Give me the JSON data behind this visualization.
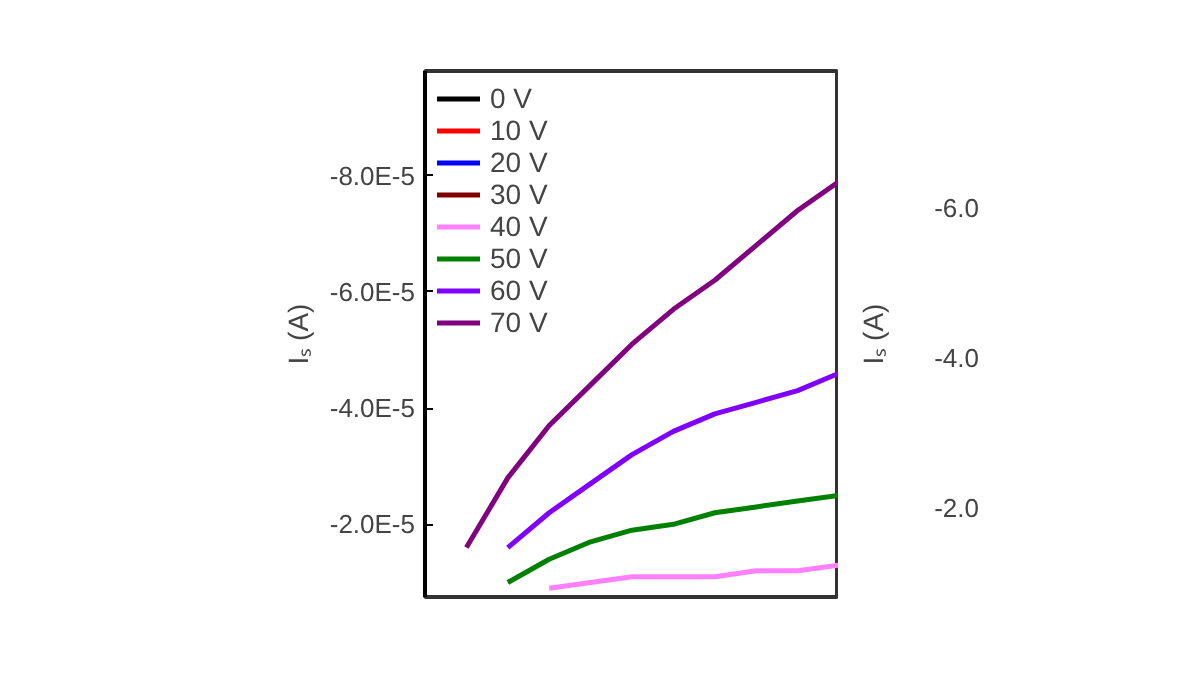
{
  "chart_data": [
    {
      "type": "line",
      "ylabel": "Iₛ (A)",
      "categories": [
        null,
        null,
        null,
        null,
        null,
        null,
        null,
        null,
        null,
        null,
        null
      ],
      "ylim": [
        -7.5e-06,
        -9.8e-05
      ],
      "yticks": [
        {
          "value": -2e-05,
          "label": "-2.0E-5"
        },
        {
          "value": -4e-05,
          "label": "-4.0E-5"
        },
        {
          "value": -6e-05,
          "label": "-6.0E-5"
        },
        {
          "value": -8e-05,
          "label": "-8.0E-5"
        }
      ],
      "tick_labels": "y",
      "legend": "top left",
      "series": [
        {
          "name": "0 V",
          "color": "#000000",
          "values": [
            null,
            null,
            null,
            null,
            null,
            null,
            null,
            null,
            null,
            null,
            null
          ]
        },
        {
          "name": "10 V",
          "color": "#ff0000",
          "values": [
            null,
            null,
            null,
            null,
            null,
            null,
            null,
            null,
            null,
            null,
            null
          ]
        },
        {
          "name": "20 V",
          "color": "#0000ff",
          "values": [
            null,
            null,
            null,
            null,
            null,
            null,
            null,
            null,
            null,
            null,
            null
          ]
        },
        {
          "name": "30 V",
          "color": "#800000",
          "values": [
            null,
            null,
            null,
            null,
            null,
            null,
            null,
            null,
            null,
            null,
            null
          ]
        },
        {
          "name": "40 V",
          "color": "#ff80ff",
          "values": [
            null,
            null,
            null,
            -9e-06,
            -1e-05,
            -1.1e-05,
            -1.1e-05,
            -1.1e-05,
            -1.2e-05,
            -1.2e-05,
            -1.3e-05
          ]
        },
        {
          "name": "50 V",
          "color": "#008000",
          "values": [
            null,
            null,
            -1e-05,
            -1.4e-05,
            -1.7e-05,
            -1.9e-05,
            -2e-05,
            -2.2e-05,
            -2.3e-05,
            -2.4e-05,
            -2.5e-05
          ]
        },
        {
          "name": "60 V",
          "color": "#8000ff",
          "values": [
            null,
            null,
            -1.6e-05,
            -2.2e-05,
            -2.7e-05,
            -3.2e-05,
            -3.6e-05,
            -3.9e-05,
            -4.1e-05,
            -4.3e-05,
            -4.6e-05
          ]
        },
        {
          "name": "70 V",
          "color": "#800080",
          "values": [
            null,
            -1.6e-05,
            -2.8e-05,
            -3.7e-05,
            -4.4e-05,
            -5.1e-05,
            -5.7e-05,
            -6.2e-05,
            -6.8e-05,
            -7.4e-05,
            -7.9e-05
          ]
        }
      ]
    },
    {
      "type": "other",
      "ylabel": "Iₛ (A)",
      "annotations": [
        "-6.0",
        "-4.0",
        "-2.0"
      ]
    }
  ]
}
